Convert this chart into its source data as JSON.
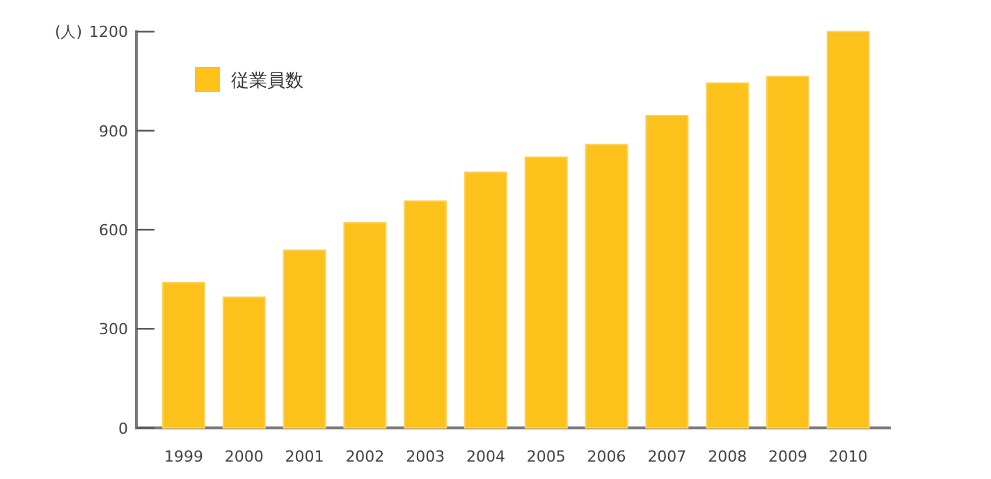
{
  "chart_data": {
    "type": "bar",
    "ylabel": "(人)",
    "categories": [
      "1999",
      "2000",
      "2001",
      "2002",
      "2003",
      "2004",
      "2005",
      "2006",
      "2007",
      "2008",
      "2009",
      "2010"
    ],
    "series": [
      {
        "name": "従業員数",
        "color": "#fcc21b",
        "values": [
          440,
          396,
          538,
          621,
          687,
          774,
          820,
          858,
          946,
          1044,
          1064,
          1200
        ]
      }
    ],
    "ylim": [
      0,
      1200
    ],
    "yticks": [
      0,
      300,
      600,
      900,
      1200
    ],
    "legend": "top left"
  }
}
